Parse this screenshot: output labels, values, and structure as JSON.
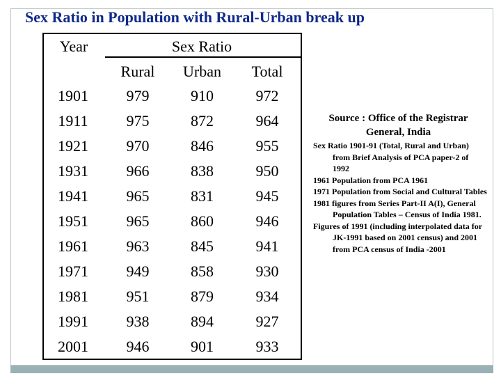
{
  "title": "Sex Ratio in Population with Rural-Urban break up",
  "table": {
    "year_header": "Year",
    "sex_ratio_header": "Sex Ratio",
    "sub_headers": [
      "Rural",
      "Urban",
      "Total"
    ],
    "rows": [
      [
        "1901",
        "979",
        "910",
        "972"
      ],
      [
        "1911",
        "975",
        "872",
        "964"
      ],
      [
        "1921",
        "970",
        "846",
        "955"
      ],
      [
        "1931",
        "966",
        "838",
        "950"
      ],
      [
        "1941",
        "965",
        "831",
        "945"
      ],
      [
        "1951",
        "965",
        "860",
        "946"
      ],
      [
        "1961",
        "963",
        "845",
        "941"
      ],
      [
        "1971",
        "949",
        "858",
        "930"
      ],
      [
        "1981",
        "951",
        "879",
        "934"
      ],
      [
        "1991",
        "938",
        "894",
        "927"
      ],
      [
        "2001",
        "946",
        "901",
        "933"
      ]
    ]
  },
  "source": {
    "title": "Source : Office of the Registrar General, India",
    "notes": [
      "Sex Ratio 1901-91 (Total, Rural and Urban) from Brief Analysis of PCA paper-2 of 1992",
      "1961 Population from PCA 1961",
      "1971 Population from Social and Cultural Tables",
      "1981 figures from Series Part-II A(I), General Population Tables – Census of India 1981.",
      "Figures of 1991 (including interpolated data for JK-1991 based on 2001 census) and 2001 from PCA census of India -2001"
    ]
  }
}
